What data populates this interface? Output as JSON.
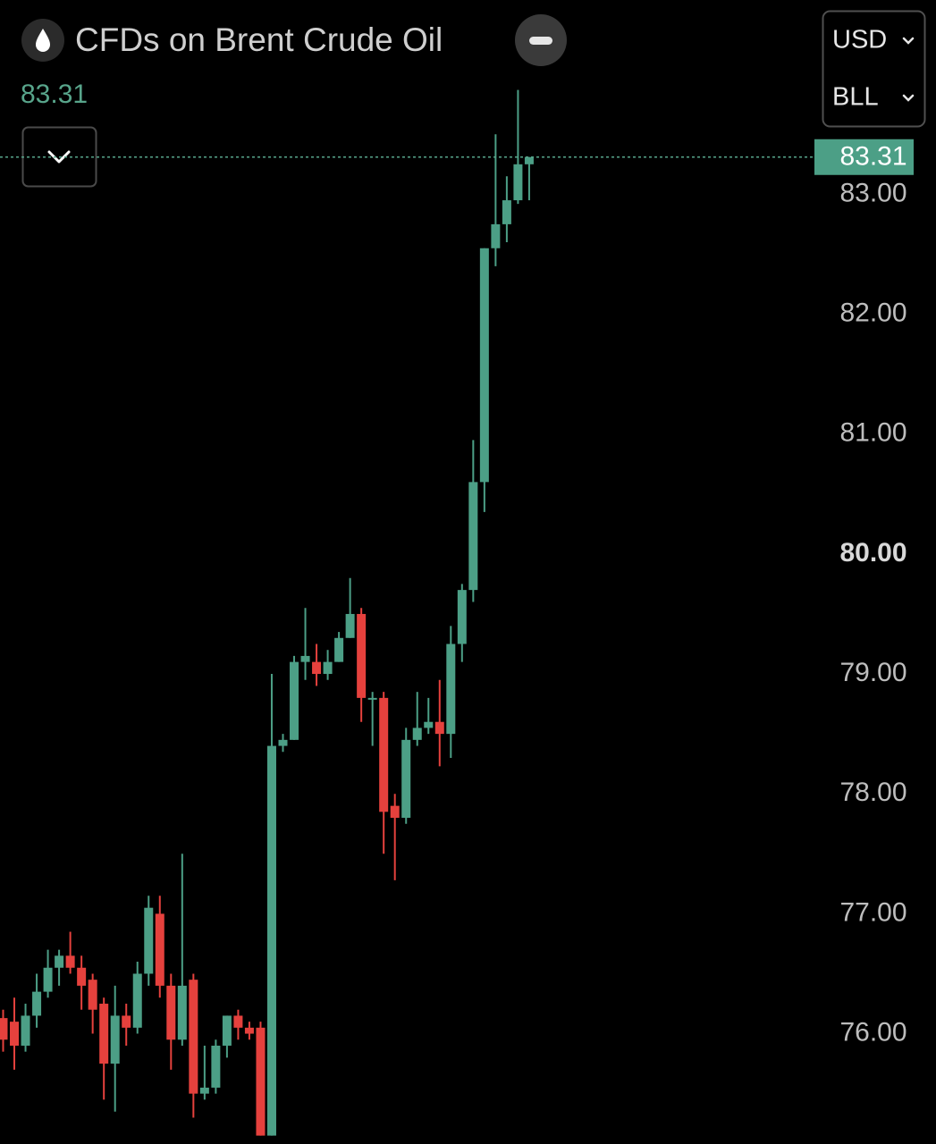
{
  "chart_data": {
    "type": "candlestick",
    "title": "CFDs on Brent Crude Oil",
    "currency": "USD",
    "unit": "BLL",
    "last_price": 83.31,
    "up_color": "#4c9f86",
    "down_color": "#e5413d",
    "ylim": [
      75.08,
      84.62
    ],
    "yticks": [
      {
        "value": 76,
        "label": "76.00"
      },
      {
        "value": 77,
        "label": "77.00"
      },
      {
        "value": 78,
        "label": "78.00"
      },
      {
        "value": 79,
        "label": "79.00"
      },
      {
        "value": 80,
        "label": "80.00",
        "bold": true
      },
      {
        "value": 81,
        "label": "81.00"
      },
      {
        "value": 82,
        "label": "82.00"
      },
      {
        "value": 83,
        "label": "83.00"
      }
    ],
    "open": [
      76.13,
      76.1,
      75.9,
      76.15,
      76.35,
      76.55,
      76.65,
      76.55,
      76.45,
      76.25,
      75.75,
      76.15,
      76.05,
      76.5,
      77.0,
      76.4,
      75.95,
      76.45,
      75.5,
      75.55,
      75.9,
      76.15,
      76.05,
      76.05,
      75.15,
      78.4,
      78.45,
      79.1,
      79.1,
      79.0,
      79.1,
      79.3,
      79.5,
      78.8,
      78.8,
      77.9,
      77.8,
      78.45,
      78.55,
      78.6,
      78.5,
      79.25,
      79.7,
      80.6,
      82.55,
      82.75,
      82.95,
      83.25
    ],
    "high": [
      76.2,
      76.3,
      76.25,
      76.5,
      76.7,
      76.7,
      76.85,
      76.65,
      76.5,
      76.3,
      76.4,
      76.25,
      76.6,
      77.15,
      77.15,
      76.5,
      77.5,
      76.5,
      75.9,
      75.95,
      76.15,
      76.2,
      76.1,
      76.1,
      79.0,
      78.5,
      79.15,
      79.55,
      79.25,
      79.2,
      79.35,
      79.8,
      79.55,
      78.85,
      78.85,
      78.0,
      78.55,
      78.85,
      78.8,
      78.95,
      79.4,
      79.75,
      80.95,
      82.55,
      83.5,
      83.15,
      83.87,
      83.31
    ],
    "low": [
      75.85,
      75.7,
      75.85,
      76.05,
      76.3,
      76.4,
      76.5,
      76.2,
      76.0,
      75.45,
      75.35,
      75.9,
      76.0,
      76.4,
      76.3,
      75.7,
      75.9,
      75.3,
      75.45,
      75.5,
      75.8,
      75.95,
      75.95,
      75.15,
      75.15,
      78.35,
      78.45,
      78.95,
      78.9,
      78.95,
      79.1,
      79.3,
      78.6,
      78.4,
      77.5,
      77.28,
      77.75,
      78.4,
      78.5,
      78.23,
      78.3,
      79.1,
      79.6,
      80.35,
      82.4,
      82.6,
      82.92,
      82.95
    ],
    "close": [
      75.95,
      75.9,
      76.15,
      76.35,
      76.55,
      76.65,
      76.55,
      76.4,
      76.2,
      75.75,
      76.15,
      76.05,
      76.5,
      77.05,
      76.4,
      75.95,
      76.4,
      75.5,
      75.55,
      75.9,
      76.15,
      76.05,
      76.0,
      75.15,
      78.4,
      78.45,
      79.1,
      79.15,
      79.0,
      79.1,
      79.3,
      79.5,
      78.8,
      78.8,
      77.85,
      77.8,
      78.45,
      78.55,
      78.6,
      78.5,
      79.25,
      79.7,
      80.6,
      82.55,
      82.75,
      82.95,
      83.25,
      83.31
    ]
  }
}
